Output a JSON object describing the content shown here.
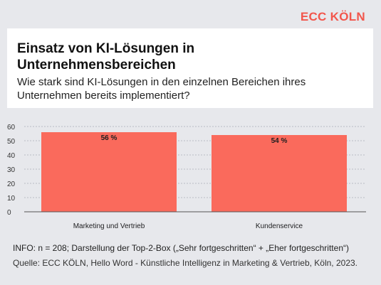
{
  "brand": {
    "name": "ECC KÖLN",
    "color": "#f2564c"
  },
  "header": {
    "title": "Einsatz von KI-Lösungen in Unternehmensbereichen",
    "subtitle": "Wie stark sind KI-Lösungen in den einzelnen Bereichen ihres Unternehmen bereits implementiert?"
  },
  "chart_data": {
    "type": "bar",
    "categories": [
      "Marketing und Vertrieb",
      "Kundenservice"
    ],
    "values": [
      56,
      54
    ],
    "value_labels": [
      "56 %",
      "54 %"
    ],
    "yticks": [
      "0",
      "10",
      "20",
      "30",
      "40",
      "50",
      "60"
    ],
    "ylim": [
      0,
      60
    ],
    "grid": true,
    "bar_color": "#fa6a5c"
  },
  "footer": {
    "info": "INFO: n = 208; Darstellung der Top-2-Box („Sehr fortgeschritten“ + „Eher fortgeschritten“)",
    "source": "Quelle: ECC KÖLN, Hello Word - Künstliche Intelligenz in Marketing & Vertrieb, Köln, 2023."
  }
}
